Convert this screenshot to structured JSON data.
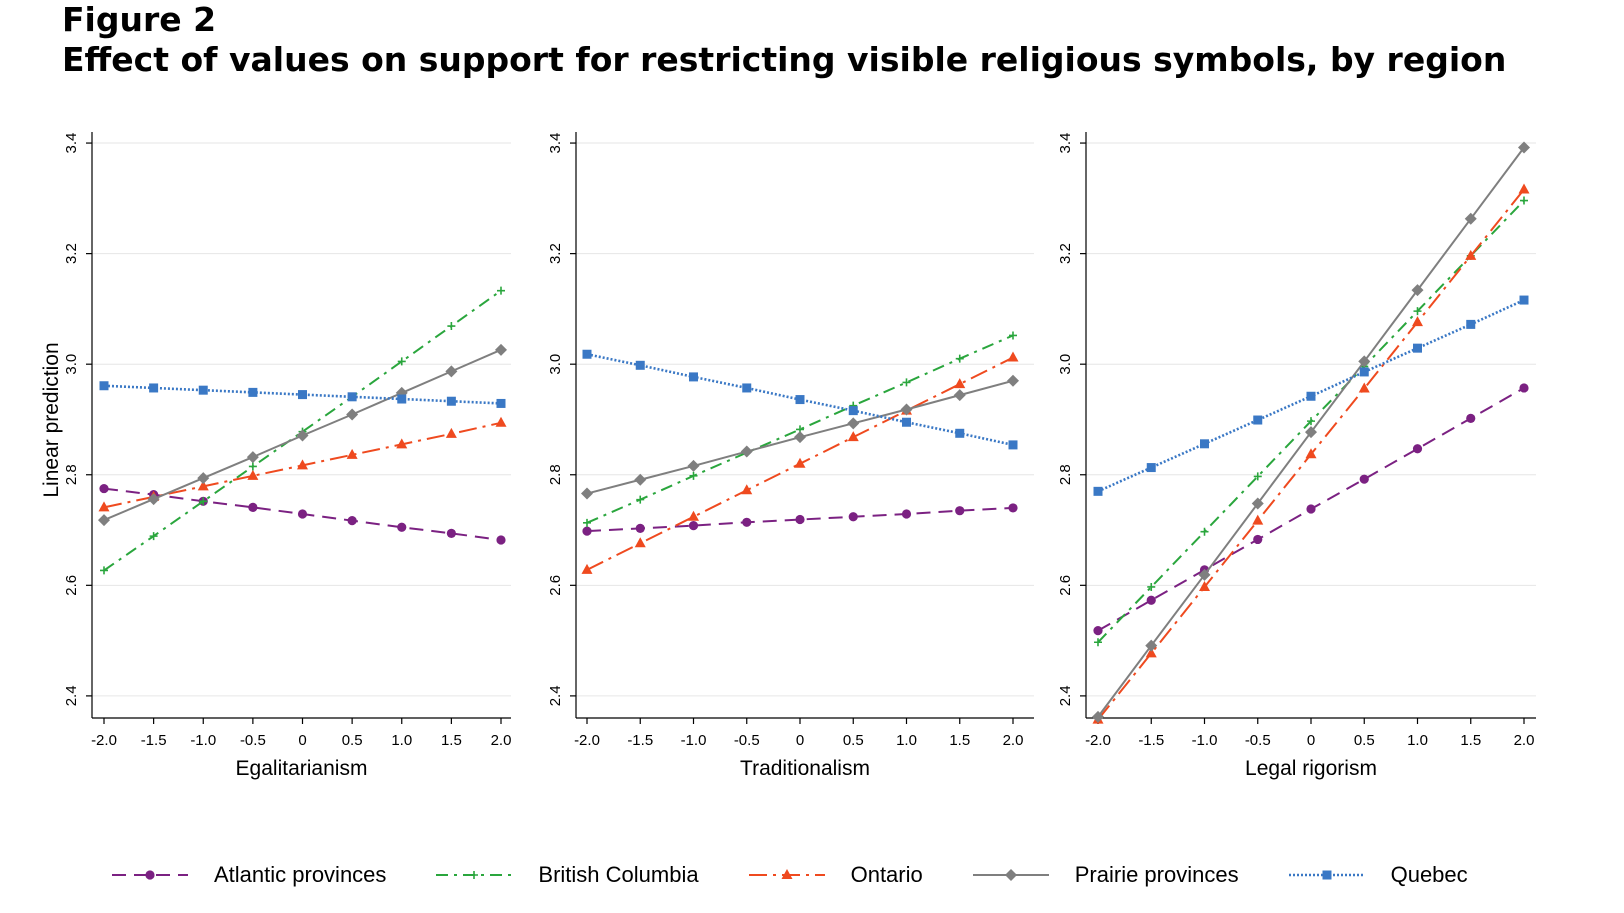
{
  "figure": {
    "label": "Figure 2",
    "title": "Effect of values on support for restricting visible religious symbols, by region"
  },
  "colors": {
    "atlantic": "#7b2182",
    "bc": "#2aa63d",
    "ontario": "#ef4a1f",
    "prairie": "#7f7f7f",
    "quebec": "#3a78c5",
    "grid": "#e6e6e6",
    "axis": "#000000"
  },
  "legend": [
    {
      "key": "atlantic",
      "label": "Atlantic provinces",
      "marker": "circle",
      "dash": "long-dash"
    },
    {
      "key": "bc",
      "label": "British Columbia",
      "marker": "plus",
      "dash": "dash-dot"
    },
    {
      "key": "ontario",
      "label": "Ontario",
      "marker": "triangle",
      "dash": "long-dash-dot"
    },
    {
      "key": "prairie",
      "label": "Prairie provinces",
      "marker": "diamond",
      "dash": "solid"
    },
    {
      "key": "quebec",
      "label": "Quebec",
      "marker": "square",
      "dash": "dotted"
    }
  ],
  "chart_data": [
    {
      "type": "line",
      "xlabel": "Egalitarianism",
      "ylabel": "Linear prediction",
      "x": [
        -2.0,
        -1.5,
        -1.0,
        -0.5,
        0,
        0.5,
        1.0,
        1.5,
        2.0
      ],
      "x_tick_labels": [
        "-2.0",
        "-1.5",
        "-1.0",
        "-0.5",
        "0",
        "0.5",
        "1.0",
        "1.5",
        "2.0"
      ],
      "y_ticks": [
        2.4,
        2.6,
        2.8,
        3.0,
        3.2,
        3.4
      ],
      "y_tick_labels": [
        "2.4",
        "2.6",
        "2.8",
        "3.0",
        "3.2",
        "3.4"
      ],
      "ylim": [
        2.36,
        3.42
      ],
      "grid": true,
      "series": [
        {
          "name": "Atlantic provinces",
          "key": "atlantic",
          "values": [
            2.775,
            2.764,
            2.752,
            2.741,
            2.729,
            2.717,
            2.705,
            2.694,
            2.682
          ]
        },
        {
          "name": "British Columbia",
          "key": "bc",
          "values": [
            2.627,
            2.689,
            2.752,
            2.815,
            2.878,
            2.941,
            3.005,
            3.069,
            3.133
          ]
        },
        {
          "name": "Ontario",
          "key": "ontario",
          "values": [
            2.741,
            2.76,
            2.779,
            2.798,
            2.817,
            2.836,
            2.855,
            2.874,
            2.894
          ]
        },
        {
          "name": "Prairie provinces",
          "key": "prairie",
          "values": [
            2.718,
            2.756,
            2.794,
            2.832,
            2.871,
            2.909,
            2.948,
            2.987,
            3.026
          ]
        },
        {
          "name": "Quebec",
          "key": "quebec",
          "values": [
            2.961,
            2.957,
            2.953,
            2.949,
            2.945,
            2.941,
            2.937,
            2.933,
            2.929
          ]
        }
      ]
    },
    {
      "type": "line",
      "xlabel": "Traditionalism",
      "ylabel": "",
      "x": [
        -2.0,
        -1.5,
        -1.0,
        -0.5,
        0,
        0.5,
        1.0,
        1.5,
        2.0
      ],
      "x_tick_labels": [
        "-2.0",
        "-1.5",
        "-1.0",
        "-0.5",
        "0",
        "0.5",
        "1.0",
        "1.5",
        "2.0"
      ],
      "y_ticks": [
        2.4,
        2.6,
        2.8,
        3.0,
        3.2,
        3.4
      ],
      "y_tick_labels": [
        "2.4",
        "2.6",
        "2.8",
        "3.0",
        "3.2",
        "3.4"
      ],
      "ylim": [
        2.36,
        3.42
      ],
      "grid": true,
      "series": [
        {
          "name": "Atlantic provinces",
          "key": "atlantic",
          "values": [
            2.698,
            2.703,
            2.708,
            2.714,
            2.719,
            2.724,
            2.729,
            2.735,
            2.74
          ]
        },
        {
          "name": "British Columbia",
          "key": "bc",
          "values": [
            2.713,
            2.755,
            2.798,
            2.84,
            2.882,
            2.925,
            2.967,
            3.01,
            3.052
          ]
        },
        {
          "name": "Ontario",
          "key": "ontario",
          "values": [
            2.628,
            2.676,
            2.724,
            2.772,
            2.82,
            2.868,
            2.916,
            2.964,
            3.012
          ]
        },
        {
          "name": "Prairie provinces",
          "key": "prairie",
          "values": [
            2.766,
            2.791,
            2.816,
            2.842,
            2.868,
            2.893,
            2.918,
            2.944,
            2.97
          ]
        },
        {
          "name": "Quebec",
          "key": "quebec",
          "values": [
            3.018,
            2.998,
            2.977,
            2.957,
            2.936,
            2.916,
            2.895,
            2.875,
            2.854
          ]
        }
      ]
    },
    {
      "type": "line",
      "xlabel": "Legal rigorism",
      "ylabel": "",
      "x": [
        -2.0,
        -1.5,
        -1.0,
        -0.5,
        0,
        0.5,
        1.0,
        1.5,
        2.0
      ],
      "x_tick_labels": [
        "-2.0",
        "-1.5",
        "-1.0",
        "-0.5",
        "0",
        "0.5",
        "1.0",
        "1.5",
        "2.0"
      ],
      "y_ticks": [
        2.4,
        2.6,
        2.8,
        3.0,
        3.2,
        3.4
      ],
      "y_tick_labels": [
        "2.4",
        "2.6",
        "2.8",
        "3.0",
        "3.2",
        "3.4"
      ],
      "ylim": [
        2.36,
        3.42
      ],
      "grid": true,
      "series": [
        {
          "name": "Atlantic provinces",
          "key": "atlantic",
          "values": [
            2.518,
            2.573,
            2.628,
            2.683,
            2.738,
            2.792,
            2.847,
            2.902,
            2.957
          ]
        },
        {
          "name": "British Columbia",
          "key": "bc",
          "values": [
            2.497,
            2.597,
            2.697,
            2.797,
            2.897,
            2.996,
            3.096,
            3.196,
            3.296
          ]
        },
        {
          "name": "Ontario",
          "key": "ontario",
          "values": [
            2.357,
            2.477,
            2.597,
            2.717,
            2.837,
            2.956,
            3.076,
            3.196,
            3.316
          ]
        },
        {
          "name": "Prairie provinces",
          "key": "prairie",
          "values": [
            2.362,
            2.491,
            2.619,
            2.748,
            2.877,
            3.005,
            3.134,
            3.263,
            3.392
          ]
        },
        {
          "name": "Quebec",
          "key": "quebec",
          "values": [
            2.77,
            2.813,
            2.856,
            2.899,
            2.942,
            2.986,
            3.029,
            3.072,
            3.116
          ]
        }
      ]
    }
  ]
}
